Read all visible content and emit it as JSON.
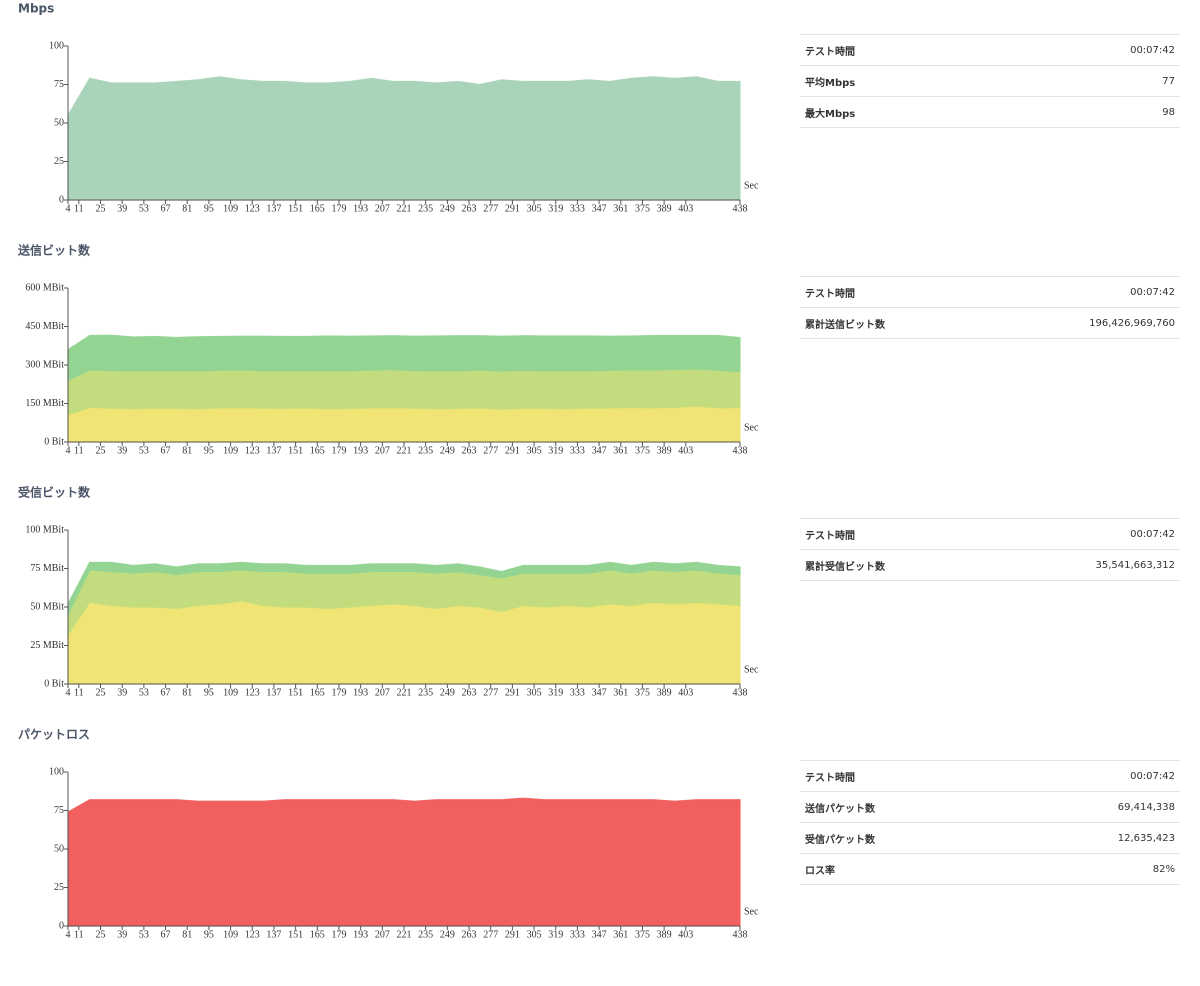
{
  "chart_data": [
    {
      "type": "area",
      "title": "Mbps",
      "xlabel": "Sec",
      "color": "#b3dfc3",
      "x": [
        4,
        18,
        32,
        46,
        60,
        74,
        88,
        102,
        116,
        130,
        144,
        158,
        172,
        186,
        200,
        214,
        228,
        242,
        256,
        270,
        284,
        298,
        312,
        326,
        340,
        354,
        368,
        382,
        396,
        410,
        424,
        438
      ],
      "values": [
        55,
        79,
        76,
        76,
        76,
        77,
        78,
        80,
        78,
        77,
        77,
        76,
        76,
        77,
        79,
        77,
        77,
        76,
        77,
        75,
        78,
        77,
        77,
        77,
        78,
        77,
        79,
        80,
        79,
        80,
        77,
        77
      ],
      "xlim": [
        4,
        438
      ],
      "xticks": [
        4,
        11,
        25,
        39,
        53,
        67,
        81,
        95,
        109,
        123,
        137,
        151,
        165,
        179,
        193,
        207,
        221,
        235,
        249,
        263,
        277,
        291,
        305,
        319,
        333,
        347,
        361,
        375,
        389,
        403,
        438
      ],
      "ylim": [
        0,
        100
      ],
      "yticks": [
        0,
        25,
        50,
        75,
        100
      ]
    },
    {
      "type": "area",
      "title": "送信ビット数",
      "xlabel": "Sec",
      "stacked": true,
      "x": [
        4,
        18,
        32,
        46,
        60,
        74,
        88,
        102,
        116,
        130,
        144,
        158,
        172,
        186,
        200,
        214,
        228,
        242,
        256,
        270,
        284,
        298,
        312,
        326,
        340,
        354,
        368,
        382,
        396,
        410,
        424,
        438
      ],
      "series": [
        {
          "color": "#fdf07a",
          "values": [
            105,
            135,
            132,
            130,
            132,
            131,
            130,
            133,
            134,
            132,
            131,
            133,
            130,
            131,
            133,
            134,
            132,
            130,
            131,
            133,
            128,
            132,
            131,
            130,
            132,
            133,
            134,
            133,
            135,
            140,
            133,
            134
          ]
        },
        {
          "color": "#cde985",
          "values": [
            135,
            145,
            146,
            147,
            145,
            146,
            147,
            146,
            147,
            145,
            146,
            145,
            147,
            146,
            147,
            148,
            146,
            147,
            146,
            147,
            148,
            147,
            146,
            148,
            145,
            146,
            147,
            148,
            147,
            145,
            146,
            140
          ]
        },
        {
          "color": "#9bdf9b",
          "values": [
            120,
            135,
            138,
            132,
            134,
            130,
            133,
            132,
            131,
            135,
            134,
            133,
            136,
            135,
            133,
            132,
            134,
            136,
            137,
            134,
            136,
            135,
            136,
            135,
            136,
            133,
            132,
            134,
            133,
            130,
            136,
            133
          ]
        }
      ],
      "xlim": [
        4,
        438
      ],
      "xticks": [
        4,
        11,
        25,
        39,
        53,
        67,
        81,
        95,
        109,
        123,
        137,
        151,
        165,
        179,
        193,
        207,
        221,
        235,
        249,
        263,
        277,
        291,
        305,
        319,
        333,
        347,
        361,
        375,
        389,
        403,
        438
      ],
      "ylim": [
        0,
        600
      ],
      "yticks": [
        {
          "value": 0,
          "label": "0 Bit"
        },
        {
          "value": 150,
          "label": "150 MBit"
        },
        {
          "value": 300,
          "label": "300 MBit"
        },
        {
          "value": 450,
          "label": "450 MBit"
        },
        {
          "value": 600,
          "label": "600 MBit"
        }
      ]
    },
    {
      "type": "area",
      "title": "受信ビット数",
      "xlabel": "Sec",
      "stacked": true,
      "x": [
        4,
        18,
        32,
        46,
        60,
        74,
        88,
        102,
        116,
        130,
        144,
        158,
        172,
        186,
        200,
        214,
        228,
        242,
        256,
        270,
        284,
        298,
        312,
        326,
        340,
        354,
        368,
        382,
        396,
        410,
        424,
        438
      ],
      "series": [
        {
          "color": "#fdf07a",
          "values": [
            32,
            53,
            51,
            50,
            50,
            49,
            51,
            52,
            54,
            51,
            50,
            50,
            49,
            50,
            51,
            52,
            51,
            49,
            51,
            50,
            47,
            51,
            50,
            51,
            50,
            52,
            51,
            53,
            52,
            53,
            52,
            51
          ]
        },
        {
          "color": "#cde985",
          "values": [
            13,
            21,
            22,
            22,
            23,
            22,
            22,
            21,
            20,
            22,
            23,
            22,
            23,
            22,
            22,
            21,
            22,
            23,
            22,
            21,
            22,
            21,
            22,
            21,
            22,
            22,
            21,
            21,
            21,
            21,
            20,
            20
          ]
        },
        {
          "color": "#9bdf9b",
          "values": [
            7,
            5,
            6,
            5,
            5,
            5,
            5,
            5,
            5,
            5,
            5,
            5,
            5,
            5,
            5,
            5,
            5,
            5,
            5,
            5,
            4,
            5,
            5,
            5,
            5,
            5,
            5,
            5,
            5,
            5,
            5,
            5
          ]
        }
      ],
      "xlim": [
        4,
        438
      ],
      "xticks": [
        4,
        11,
        25,
        39,
        53,
        67,
        81,
        95,
        109,
        123,
        137,
        151,
        165,
        179,
        193,
        207,
        221,
        235,
        249,
        263,
        277,
        291,
        305,
        319,
        333,
        347,
        361,
        375,
        389,
        403,
        438
      ],
      "ylim": [
        0,
        100
      ],
      "yticks": [
        {
          "value": 0,
          "label": "0 Bit"
        },
        {
          "value": 25,
          "label": "25 MBit"
        },
        {
          "value": 50,
          "label": "50 MBit"
        },
        {
          "value": 75,
          "label": "75 MBit"
        },
        {
          "value": 100,
          "label": "100 MBit"
        }
      ]
    },
    {
      "type": "area",
      "title": "パケットロス",
      "xlabel": "Sec",
      "color": "#ff6464",
      "x": [
        4,
        18,
        32,
        46,
        60,
        74,
        88,
        102,
        116,
        130,
        144,
        158,
        172,
        186,
        200,
        214,
        228,
        242,
        256,
        270,
        284,
        298,
        312,
        326,
        340,
        354,
        368,
        382,
        396,
        410,
        424,
        438
      ],
      "values": [
        74,
        82,
        82,
        82,
        82,
        82,
        81,
        81,
        81,
        81,
        82,
        82,
        82,
        82,
        82,
        82,
        81,
        82,
        82,
        82,
        82,
        83,
        82,
        82,
        82,
        82,
        82,
        82,
        81,
        82,
        82,
        82
      ],
      "xlim": [
        4,
        438
      ],
      "xticks": [
        4,
        11,
        25,
        39,
        53,
        67,
        81,
        95,
        109,
        123,
        137,
        151,
        165,
        179,
        193,
        207,
        221,
        235,
        249,
        263,
        277,
        291,
        305,
        319,
        333,
        347,
        361,
        375,
        389,
        403,
        438
      ],
      "ylim": [
        0,
        100
      ],
      "yticks": [
        0,
        25,
        50,
        75,
        100
      ]
    }
  ],
  "tables": [
    {
      "rows": [
        [
          "テスト時間",
          "00:07:42"
        ],
        [
          "平均Mbps",
          "77"
        ],
        [
          "最大Mbps",
          "98"
        ]
      ]
    },
    {
      "rows": [
        [
          "テスト時間",
          "00:07:42"
        ],
        [
          "累計送信ビット数",
          "196,426,969,760"
        ]
      ]
    },
    {
      "rows": [
        [
          "テスト時間",
          "00:07:42"
        ],
        [
          "累計受信ビット数",
          "35,541,663,312"
        ]
      ]
    },
    {
      "rows": [
        [
          "テスト時間",
          "00:07:42"
        ],
        [
          "送信パケット数",
          "69,414,338"
        ],
        [
          "受信パケット数",
          "12,635,423"
        ],
        [
          "ロス率",
          "82%"
        ]
      ]
    }
  ]
}
